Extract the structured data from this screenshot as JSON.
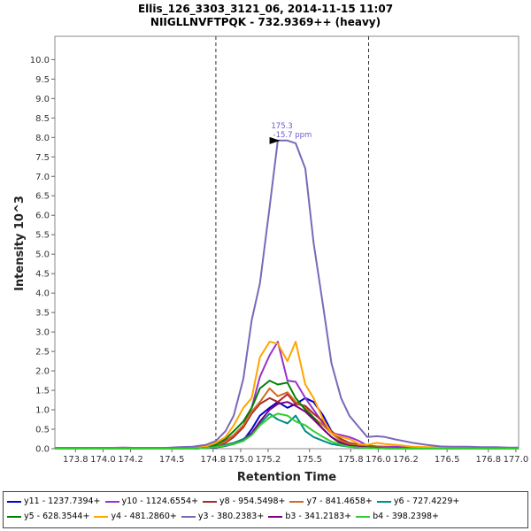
{
  "chart_data": {
    "type": "line",
    "title": "Ellis_126_3303_3121_06, 2014-11-15 11:07",
    "subtitle": "NIIGLLNVFTPQK - 732.9369++ (heavy)",
    "xlabel": "Retention Time",
    "ylabel": "Intensity 10^3",
    "xlim": [
      173.65,
      177.02
    ],
    "ylim": [
      0,
      10.6
    ],
    "x_ticks": [
      "173.8",
      "174.0",
      "174.2",
      "174.5",
      "174.8",
      "175.0",
      "175.2",
      "175.5",
      "175.8",
      "176.0",
      "176.2",
      "176.5",
      "176.8",
      "177.0"
    ],
    "x_tick_values": [
      173.8,
      174.0,
      174.2,
      174.5,
      174.8,
      175.0,
      175.2,
      175.5,
      175.8,
      176.0,
      176.2,
      176.5,
      176.8,
      177.0
    ],
    "y_ticks": [
      "0.0",
      "0.5",
      "1.0",
      "1.5",
      "2.0",
      "2.5",
      "3.0",
      "3.5",
      "4.0",
      "4.5",
      "5.0",
      "5.5",
      "6.0",
      "6.5",
      "7.0",
      "7.5",
      "8.0",
      "8.5",
      "9.0",
      "9.5",
      "10.0"
    ],
    "y_tick_values": [
      0,
      0.5,
      1.0,
      1.5,
      2.0,
      2.5,
      3.0,
      3.5,
      4.0,
      4.5,
      5.0,
      5.5,
      6.0,
      6.5,
      7.0,
      7.5,
      8.0,
      8.5,
      9.0,
      9.5,
      10.0
    ],
    "boundaries": [
      174.82,
      175.93
    ],
    "annotation": {
      "x": 175.3,
      "y": 7.92,
      "line1": "175.3",
      "line2": "-15.7 ppm",
      "color": "#6a5acd"
    },
    "x": [
      173.65,
      173.75,
      173.85,
      173.95,
      174.05,
      174.15,
      174.25,
      174.35,
      174.45,
      174.55,
      174.65,
      174.75,
      174.82,
      174.89,
      174.95,
      175.02,
      175.08,
      175.14,
      175.21,
      175.27,
      175.34,
      175.4,
      175.47,
      175.53,
      175.6,
      175.66,
      175.73,
      175.79,
      175.86,
      175.92,
      175.99,
      176.05,
      176.12,
      176.18,
      176.25,
      176.35,
      176.45,
      176.55,
      176.65,
      176.75,
      176.85,
      176.95,
      177.02
    ],
    "series": [
      {
        "name": "y11 - 1237.7394+",
        "color": "#0000cd",
        "values": [
          0,
          0,
          0,
          0,
          0,
          0,
          0,
          0,
          0,
          0,
          0,
          0.02,
          0.03,
          0.07,
          0.12,
          0.22,
          0.5,
          0.85,
          1.05,
          1.2,
          1.05,
          1.15,
          1.3,
          1.2,
          0.85,
          0.45,
          0.2,
          0.08,
          0.05,
          0.03,
          0.02,
          0.02,
          0.01,
          0.01,
          0,
          0,
          0,
          0,
          0,
          0,
          0,
          0,
          0
        ]
      },
      {
        "name": "y10 - 1124.6554+",
        "color": "#9932cc",
        "values": [
          0.02,
          0.02,
          0.02,
          0.02,
          0.02,
          0.03,
          0.02,
          0.02,
          0.02,
          0.02,
          0.03,
          0.05,
          0.1,
          0.2,
          0.35,
          0.6,
          1.05,
          1.85,
          2.4,
          2.75,
          1.75,
          1.72,
          1.3,
          1.0,
          0.65,
          0.4,
          0.35,
          0.3,
          0.2,
          0.08,
          0.06,
          0.05,
          0.05,
          0.04,
          0.03,
          0.03,
          0.03,
          0.02,
          0.02,
          0.02,
          0.02,
          0.02,
          0.02
        ]
      },
      {
        "name": "y8 - 954.5498+",
        "color": "#a52a2a",
        "values": [
          0,
          0,
          0,
          0,
          0,
          0,
          0,
          0,
          0,
          0,
          0,
          0.03,
          0.07,
          0.15,
          0.3,
          0.55,
          0.9,
          1.15,
          1.3,
          1.2,
          1.4,
          1.15,
          1.1,
          0.9,
          0.7,
          0.45,
          0.25,
          0.15,
          0.1,
          0.06,
          0.04,
          0.03,
          0.02,
          0.01,
          0,
          0,
          0,
          0,
          0,
          0,
          0,
          0,
          0
        ]
      },
      {
        "name": "y7 - 841.4658+",
        "color": "#d2691e",
        "values": [
          0,
          0,
          0,
          0,
          0,
          0,
          0,
          0,
          0,
          0,
          0,
          0.04,
          0.08,
          0.18,
          0.35,
          0.6,
          0.95,
          1.2,
          1.55,
          1.35,
          1.45,
          1.2,
          1.05,
          0.8,
          0.6,
          0.4,
          0.2,
          0.12,
          0.08,
          0.05,
          0.04,
          0.03,
          0.02,
          0.01,
          0,
          0,
          0,
          0,
          0,
          0,
          0,
          0,
          0
        ]
      },
      {
        "name": "y6 - 727.4229+",
        "color": "#008b8b",
        "values": [
          0,
          0,
          0,
          0,
          0,
          0,
          0,
          0,
          0,
          0,
          0,
          0.02,
          0.05,
          0.1,
          0.15,
          0.25,
          0.4,
          0.65,
          0.9,
          0.75,
          0.65,
          0.85,
          0.45,
          0.3,
          0.2,
          0.12,
          0.08,
          0.05,
          0.03,
          0.02,
          0.01,
          0.01,
          0,
          0,
          0,
          0,
          0,
          0,
          0,
          0,
          0,
          0,
          0
        ]
      },
      {
        "name": "y5 - 628.3544+",
        "color": "#008000",
        "values": [
          0,
          0,
          0,
          0,
          0,
          0,
          0,
          0,
          0,
          0,
          0,
          0.04,
          0.1,
          0.25,
          0.45,
          0.7,
          1.05,
          1.55,
          1.75,
          1.65,
          1.7,
          1.3,
          1.0,
          0.8,
          0.5,
          0.3,
          0.12,
          0.08,
          0.05,
          0.04,
          0.03,
          0.02,
          0.01,
          0.01,
          0,
          0,
          0,
          0,
          0,
          0,
          0,
          0,
          0
        ]
      },
      {
        "name": "y4 - 481.2860+",
        "color": "#ffa500",
        "values": [
          0.02,
          0.02,
          0.02,
          0.02,
          0.02,
          0.02,
          0.02,
          0.02,
          0.02,
          0.02,
          0.02,
          0.06,
          0.15,
          0.3,
          0.6,
          1.05,
          1.3,
          2.35,
          2.75,
          2.7,
          2.25,
          2.75,
          1.65,
          1.3,
          0.75,
          0.4,
          0.3,
          0.25,
          0.12,
          0.1,
          0.15,
          0.12,
          0.1,
          0.08,
          0.05,
          0.04,
          0.04,
          0.03,
          0.03,
          0.02,
          0.02,
          0.02,
          0.02
        ]
      },
      {
        "name": "y3 - 380.2383+",
        "color": "#7b68b8",
        "values": [
          0.02,
          0.02,
          0.02,
          0.02,
          0.02,
          0.02,
          0.02,
          0.02,
          0.02,
          0.04,
          0.05,
          0.1,
          0.2,
          0.45,
          0.85,
          1.8,
          3.3,
          4.25,
          6.2,
          7.92,
          7.92,
          7.85,
          7.2,
          5.3,
          3.65,
          2.2,
          1.3,
          0.85,
          0.55,
          0.3,
          0.32,
          0.3,
          0.24,
          0.2,
          0.15,
          0.1,
          0.06,
          0.05,
          0.05,
          0.04,
          0.04,
          0.03,
          0.03
        ]
      },
      {
        "name": "b3 - 341.2183+",
        "color": "#800080",
        "values": [
          0,
          0,
          0,
          0,
          0,
          0,
          0,
          0,
          0,
          0,
          0,
          0.02,
          0.04,
          0.08,
          0.12,
          0.2,
          0.4,
          0.7,
          1.0,
          1.15,
          1.2,
          1.1,
          0.95,
          0.75,
          0.5,
          0.3,
          0.15,
          0.08,
          0.05,
          0.03,
          0.02,
          0.01,
          0.01,
          0,
          0,
          0,
          0,
          0,
          0,
          0,
          0,
          0,
          0
        ]
      },
      {
        "name": "b4 - 398.2398+",
        "color": "#32cd32",
        "values": [
          0,
          0,
          0,
          0,
          0,
          0,
          0,
          0,
          0,
          0,
          0,
          0.02,
          0.04,
          0.08,
          0.12,
          0.2,
          0.35,
          0.6,
          0.8,
          0.9,
          0.85,
          0.7,
          0.6,
          0.45,
          0.3,
          0.18,
          0.1,
          0.05,
          0.03,
          0.02,
          0.01,
          0.01,
          0,
          0,
          0,
          0,
          0,
          0,
          0,
          0,
          0,
          0,
          0
        ]
      }
    ]
  }
}
